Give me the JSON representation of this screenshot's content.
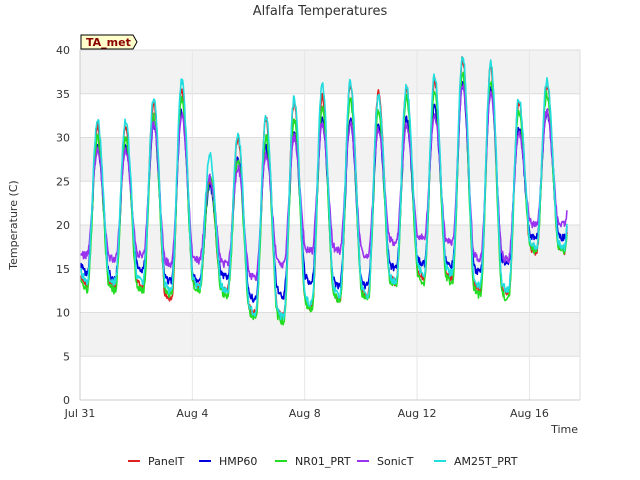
{
  "chart_data": {
    "type": "line",
    "title": "Alfalfa Temperatures",
    "badge": "TA_met",
    "xlabel": "Time",
    "ylabel": "Temperature (C)",
    "xlim": [
      0,
      17.8
    ],
    "ylim": [
      0,
      40
    ],
    "yticks": [
      0,
      5,
      10,
      15,
      20,
      25,
      30,
      35,
      40
    ],
    "xticks": [
      {
        "day": 0,
        "label": "Jul 31"
      },
      {
        "day": 4,
        "label": "Aug 4"
      },
      {
        "day": 8,
        "label": "Aug 8"
      },
      {
        "day": 12,
        "label": "Aug 12"
      },
      {
        "day": 16,
        "label": "Aug 16"
      }
    ],
    "grid": true,
    "legend": "bottom",
    "series": [
      {
        "name": "PanelT",
        "color": "#dd2222",
        "maxima": [
          31.5,
          31.0,
          34.0,
          35.5,
          25.0,
          30.0,
          32.0,
          34.0,
          35.0,
          36.0,
          35.0,
          35.5,
          36.5,
          39.0,
          38.0,
          34.0,
          36.0
        ],
        "minima": [
          13.0,
          13.0,
          13.0,
          11.5,
          13.0,
          12.5,
          10.0,
          9.5,
          10.5,
          11.5,
          12.0,
          13.5,
          14.0,
          14.0,
          12.5,
          12.0,
          17.0
        ]
      },
      {
        "name": "HMP60",
        "color": "#0000dd",
        "maxima": [
          29.0,
          29.0,
          31.5,
          33.0,
          24.5,
          27.5,
          29.0,
          30.5,
          32.0,
          32.0,
          31.5,
          32.0,
          33.5,
          36.0,
          35.5,
          31.0,
          33.0
        ],
        "minima": [
          14.5,
          14.0,
          15.0,
          13.5,
          13.5,
          14.0,
          11.5,
          12.0,
          13.5,
          13.0,
          13.0,
          15.0,
          15.5,
          15.5,
          14.5,
          15.5,
          18.5
        ]
      },
      {
        "name": "NR01_PRT",
        "color": "#22dd22",
        "maxima": [
          30.0,
          30.0,
          32.5,
          34.5,
          25.5,
          27.5,
          30.0,
          32.0,
          33.5,
          34.5,
          33.0,
          34.5,
          35.5,
          37.5,
          36.5,
          33.0,
          35.0
        ],
        "minima": [
          12.5,
          12.5,
          12.5,
          12.0,
          12.5,
          12.0,
          9.5,
          9.0,
          10.5,
          11.5,
          11.5,
          13.0,
          13.5,
          13.5,
          12.0,
          11.5,
          17.0
        ]
      },
      {
        "name": "SonicT",
        "color": "#9933ee",
        "maxima": [
          28.5,
          28.5,
          31.5,
          32.5,
          25.5,
          26.5,
          28.0,
          30.0,
          31.5,
          31.5,
          31.0,
          31.5,
          32.5,
          36.0,
          35.0,
          30.5,
          33.0
        ],
        "minima": [
          16.5,
          16.0,
          16.5,
          15.5,
          16.0,
          15.5,
          14.0,
          15.5,
          17.0,
          17.0,
          16.5,
          18.0,
          18.5,
          18.0,
          16.0,
          16.0,
          20.0
        ]
      },
      {
        "name": "AM25T_PRT",
        "color": "#22dddd",
        "maxima": [
          32.0,
          32.0,
          34.5,
          36.5,
          28.0,
          30.5,
          32.5,
          34.5,
          36.0,
          36.5,
          35.0,
          36.0,
          37.0,
          39.5,
          38.5,
          34.5,
          36.5
        ],
        "minima": [
          13.5,
          13.5,
          13.5,
          12.5,
          13.0,
          12.5,
          10.0,
          9.5,
          11.0,
          12.0,
          12.0,
          13.5,
          14.5,
          14.5,
          13.0,
          12.5,
          17.5
        ]
      }
    ]
  }
}
